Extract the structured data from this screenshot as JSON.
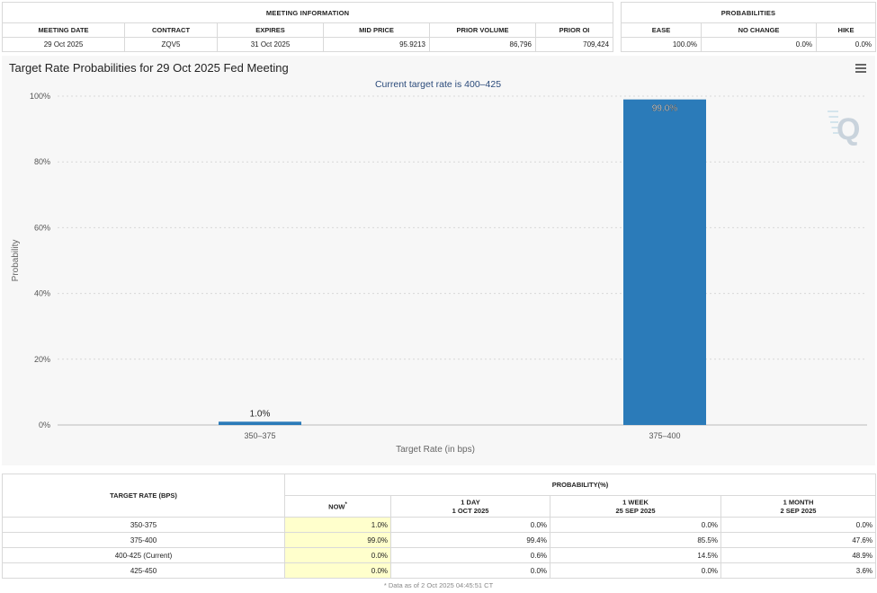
{
  "meeting_info": {
    "group_title": "MEETING INFORMATION",
    "headers": [
      "MEETING DATE",
      "CONTRACT",
      "EXPIRES",
      "MID PRICE",
      "PRIOR VOLUME",
      "PRIOR OI"
    ],
    "values": [
      "29 Oct 2025",
      "ZQV5",
      "31 Oct 2025",
      "95.9213",
      "86,796",
      "709,424"
    ]
  },
  "probabilities": {
    "group_title": "PROBABILITIES",
    "headers": [
      "EASE",
      "NO CHANGE",
      "HIKE"
    ],
    "values": [
      "100.0%",
      "0.0%",
      "0.0%"
    ]
  },
  "chart": {
    "menu_icon": "hamburger-menu-icon",
    "watermark_icon": "q-logo-icon",
    "watermark_text": "Q",
    "bar_color": "#2b7bb9"
  },
  "chart_data": {
    "type": "bar",
    "title": "Target Rate Probabilities for 29 Oct 2025 Fed Meeting",
    "subtitle": "Current target rate is 400–425",
    "categories": [
      "350–375",
      "375–400"
    ],
    "values": [
      1.0,
      99.0
    ],
    "data_labels": [
      "1.0%",
      "99.0%"
    ],
    "xlabel": "Target Rate (in bps)",
    "ylabel": "Probability",
    "ylim": [
      0,
      100
    ],
    "yticks": [
      "0%",
      "20%",
      "40%",
      "60%",
      "80%",
      "100%"
    ],
    "grid": true
  },
  "rate_table": {
    "target_rate_header": "TARGET RATE (BPS)",
    "probability_header": "PROBABILITY(%)",
    "columns": [
      {
        "line1": "NOW",
        "line2": "",
        "marker": "*"
      },
      {
        "line1": "1 DAY",
        "line2": "1 OCT 2025",
        "marker": ""
      },
      {
        "line1": "1 WEEK",
        "line2": "25 SEP 2025",
        "marker": ""
      },
      {
        "line1": "1 MONTH",
        "line2": "2 SEP 2025",
        "marker": ""
      }
    ],
    "rows": [
      {
        "rate": "350-375",
        "values": [
          "1.0%",
          "0.0%",
          "0.0%",
          "0.0%"
        ]
      },
      {
        "rate": "375-400",
        "values": [
          "99.0%",
          "99.4%",
          "85.5%",
          "47.6%"
        ]
      },
      {
        "rate": "400-425 (Current)",
        "values": [
          "0.0%",
          "0.6%",
          "14.5%",
          "48.9%"
        ]
      },
      {
        "rate": "425-450",
        "values": [
          "0.0%",
          "0.0%",
          "0.0%",
          "3.6%"
        ]
      }
    ]
  },
  "footnote": "* Data as of 2 Oct 2025 04:45:51 CT"
}
